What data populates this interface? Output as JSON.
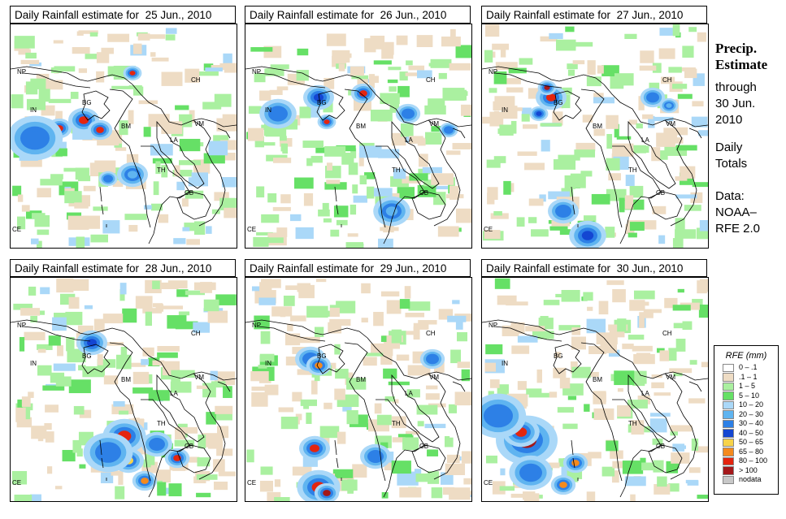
{
  "panels": [
    {
      "title_prefix": "Daily Rainfall estimate for",
      "date": "25 Jun., 2010"
    },
    {
      "title_prefix": "Daily Rainfall estimate for",
      "date": "26 Jun., 2010"
    },
    {
      "title_prefix": "Daily Rainfall estimate for",
      "date": "27 Jun., 2010"
    },
    {
      "title_prefix": "Daily Rainfall estimate for",
      "date": "28 Jun., 2010"
    },
    {
      "title_prefix": "Daily Rainfall estimate for",
      "date": "29 Jun., 2010"
    },
    {
      "title_prefix": "Daily Rainfall estimate for",
      "date": "30 Jun., 2010"
    }
  ],
  "country_labels": {
    "np": "NP",
    "ch": "CH",
    "in": "IN",
    "bg": "BG",
    "bm": "BM",
    "vm": "VM",
    "la": "LA",
    "th": "TH",
    "cb": "CB",
    "ce": "CE"
  },
  "sidebar": {
    "heading_1": "Precip.",
    "heading_2": "Estimate",
    "through": "through",
    "end_date_1": "30 Jun.",
    "end_date_2": "2010",
    "daily_1": "Daily",
    "daily_2": "Totals",
    "source_1": "Data:",
    "source_2": "NOAA–",
    "source_3": "RFE 2.0"
  },
  "legend": {
    "title": "RFE (mm)",
    "classes": [
      {
        "label": "0 – .1",
        "color": "#ffffff"
      },
      {
        "label": ".1 – 1",
        "color": "#eedcc4"
      },
      {
        "label": "1 – 5",
        "color": "#aaf0a0"
      },
      {
        "label": "5 – 10",
        "color": "#66e066"
      },
      {
        "label": "10 – 20",
        "color": "#aad8f8"
      },
      {
        "label": "20 – 30",
        "color": "#5fb4f0"
      },
      {
        "label": "30 – 40",
        "color": "#2d80e6"
      },
      {
        "label": "40 – 50",
        "color": "#1446d2"
      },
      {
        "label": "50 – 65",
        "color": "#f7d34a"
      },
      {
        "label": "65 – 80",
        "color": "#f48a1e"
      },
      {
        "label": "80 – 100",
        "color": "#e4250f"
      },
      {
        "label": "> 100",
        "color": "#a4181a"
      },
      {
        "label": "nodata",
        "color": "#c8c8c8"
      }
    ]
  }
}
